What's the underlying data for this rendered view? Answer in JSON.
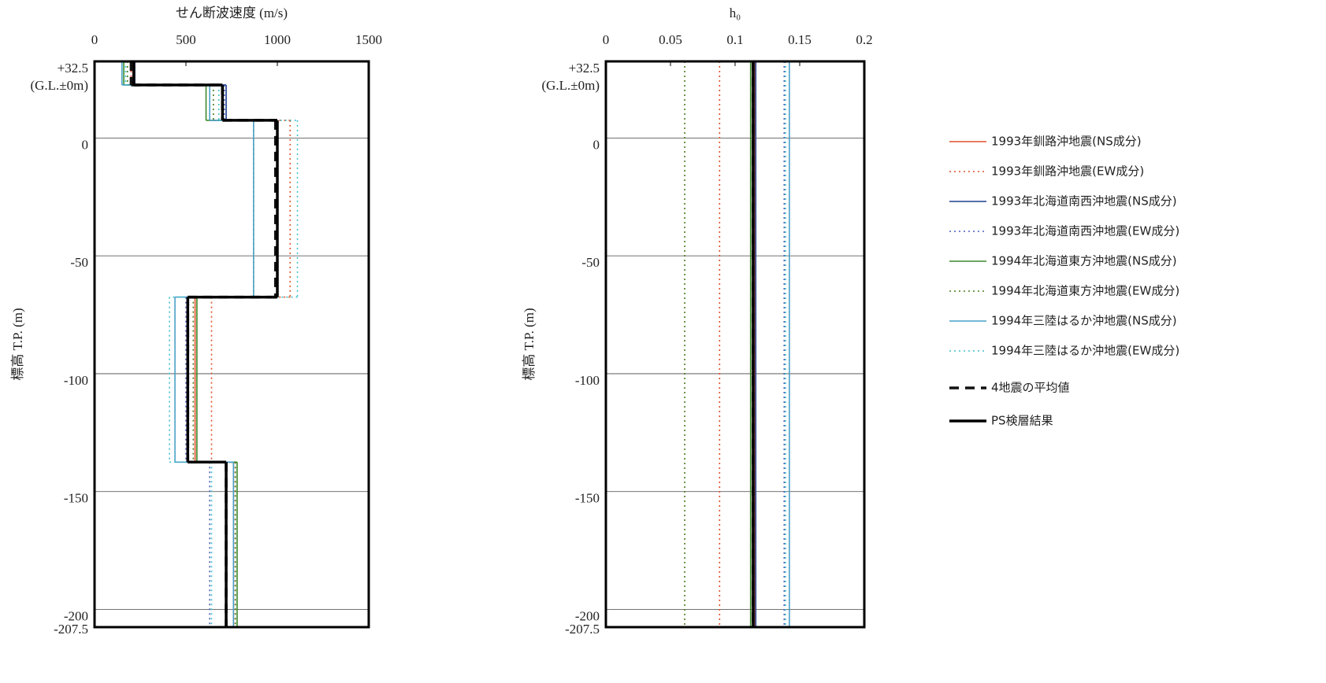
{
  "chart_data": [
    {
      "type": "step_profile",
      "title": "せん断波速度 (m/s)",
      "y_label": "標高 T.P. (m)",
      "y_annotation": "(G.L.±0m)",
      "xlim": [
        0,
        1500
      ],
      "xticks": [
        0,
        500,
        1000,
        1500
      ],
      "ylim": [
        -207.5,
        32.5
      ],
      "yticks": [
        {
          "value": 32.5,
          "label": "+32.5"
        },
        0,
        -50,
        -100,
        -150,
        -200,
        -207.5
      ],
      "grid": true,
      "layer_boundaries": [
        32.5,
        22.5,
        7.5,
        -67.5,
        -137.5,
        -207.5
      ],
      "series": [
        {
          "name": "1993年釧路沖地震(NS成分)",
          "color": "#e0502a",
          "dash": "solid",
          "values": [
            210,
            700,
            1000,
            550,
            760
          ]
        },
        {
          "name": "1993年釧路沖地震(EW成分)",
          "color": "#e0502a",
          "dash": "dotted",
          "values": [
            200,
            700,
            1070,
            640,
            770
          ]
        },
        {
          "name": "1993年北海道南西沖地震(NS成分)",
          "color": "#1f3f8f",
          "dash": "solid",
          "values": [
            220,
            720,
            1000,
            510,
            720
          ]
        },
        {
          "name": "1993年北海道南西沖地震(EW成分)",
          "color": "#4a5fc0",
          "dash": "dotted",
          "values": [
            210,
            710,
            1000,
            500,
            630
          ]
        },
        {
          "name": "1994年北海道東方沖地震(NS成分)",
          "color": "#3a8a2a",
          "dash": "solid",
          "values": [
            160,
            610,
            1000,
            560,
            780
          ]
        },
        {
          "name": "1994年北海道東方沖地震(EW成分)",
          "color": "#4a7a1a",
          "dash": "dotted",
          "values": [
            180,
            650,
            870,
            540,
            770
          ]
        },
        {
          "name": "1994年三陸はるか沖地震(NS成分)",
          "color": "#4aa0c8",
          "dash": "solid",
          "values": [
            150,
            630,
            870,
            440,
            760
          ]
        },
        {
          "name": "1994年三陸はるか沖地震(EW成分)",
          "color": "#40c0c8",
          "dash": "dotted",
          "values": [
            170,
            680,
            1110,
            410,
            640
          ]
        },
        {
          "name": "4地震の平均値",
          "color": "#111111",
          "dash": "dashed",
          "values": [
            200,
            700,
            990,
            510,
            720
          ]
        },
        {
          "name": "PS検層結果",
          "color": "#000000",
          "dash": "solid",
          "values": [
            215,
            700,
            1000,
            510,
            720
          ]
        }
      ]
    },
    {
      "type": "step_profile",
      "title": "h₀",
      "y_label": "標高 T.P. (m)",
      "y_annotation": "(G.L.±0m)",
      "xlim": [
        0,
        0.2
      ],
      "xticks": [
        0,
        0.05,
        0.1,
        0.15,
        0.2
      ],
      "ylim": [
        -207.5,
        32.5
      ],
      "yticks": [
        {
          "value": 32.5,
          "label": "+32.5"
        },
        0,
        -50,
        -100,
        -150,
        -200,
        -207.5
      ],
      "grid": true,
      "layer_boundaries": [
        32.5,
        -207.5
      ],
      "legend_position": "right",
      "series": [
        {
          "name": "1993年釧路沖地震(NS成分)",
          "color": "#e0502a",
          "dash": "solid",
          "values": [
            0.115
          ]
        },
        {
          "name": "1993年釧路沖地震(EW成分)",
          "color": "#e0502a",
          "dash": "dotted",
          "values": [
            0.088
          ]
        },
        {
          "name": "1993年北海道南西沖地震(NS成分)",
          "color": "#1f3f8f",
          "dash": "solid",
          "values": [
            0.116
          ]
        },
        {
          "name": "1993年北海道南西沖地震(EW成分)",
          "color": "#4a5fc0",
          "dash": "dotted",
          "values": [
            0.138
          ]
        },
        {
          "name": "1994年北海道東方沖地震(NS成分)",
          "color": "#3a8a2a",
          "dash": "solid",
          "values": [
            0.112
          ]
        },
        {
          "name": "1994年北海道東方沖地震(EW成分)",
          "color": "#4a7a1a",
          "dash": "dotted",
          "values": [
            0.061
          ]
        },
        {
          "name": "1994年三陸はるか沖地震(NS成分)",
          "color": "#4aa0c8",
          "dash": "solid",
          "values": [
            0.142
          ]
        },
        {
          "name": "1994年三陸はるか沖地震(EW成分)",
          "color": "#40c0c8",
          "dash": "dotted",
          "values": [
            0.139
          ]
        },
        {
          "name": "4地震の平均値",
          "color": "#111111",
          "dash": "dashed",
          "values": [
            0.114
          ]
        },
        {
          "name": "PS検層結果",
          "color": "#000000",
          "dash": "solid",
          "values": [
            0.114
          ]
        }
      ]
    }
  ]
}
